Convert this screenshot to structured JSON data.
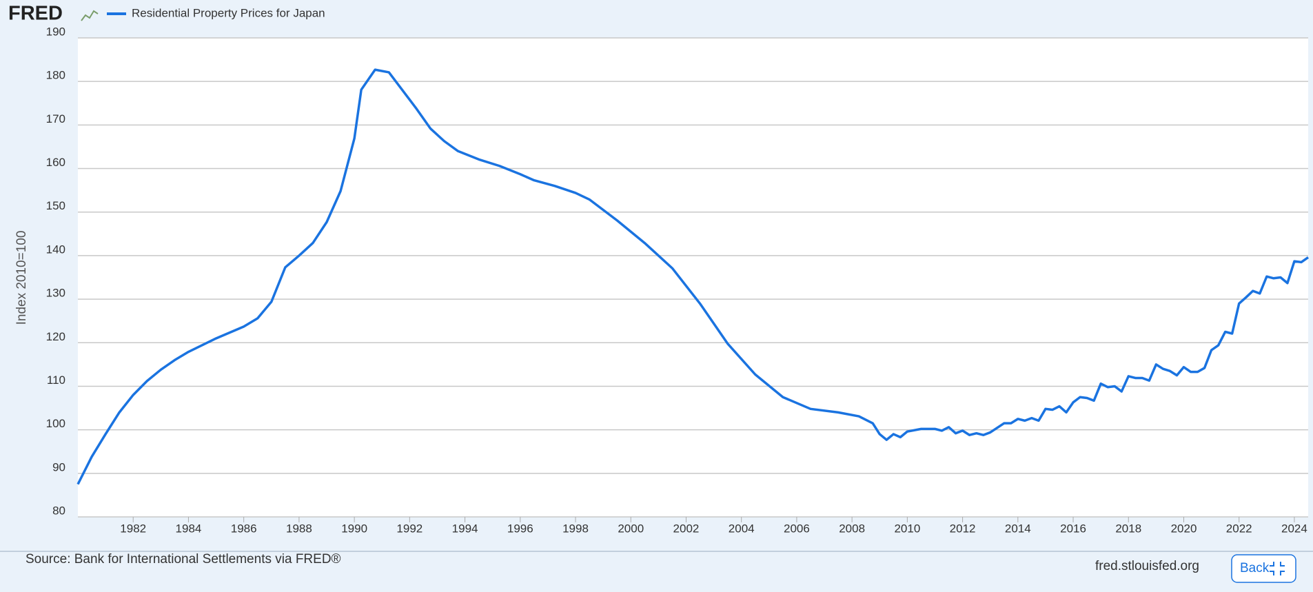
{
  "chart_data": {
    "type": "line",
    "logo": "FRED",
    "y_label": "Index 2010=100",
    "source": "Source: Bank for International Settlements via FRED®",
    "site": "fred.stlouisfed.org",
    "button": "Back",
    "x": [
      1980,
      1980.5,
      1981,
      1981.5,
      1982,
      1982.5,
      1983,
      1983.5,
      1984,
      1985,
      1986,
      1986.5,
      1987,
      1987.5,
      1988,
      1988.5,
      1989,
      1989.5,
      1990,
      1990.25,
      1990.75,
      1991.25,
      1991.75,
      1992.25,
      1992.75,
      1993.25,
      1993.75,
      1994.5,
      1995.25,
      1996,
      1996.5,
      1997.25,
      1998,
      1998.5,
      1999.5,
      2000.5,
      2001.5,
      2002.5,
      2003.5,
      2004.5,
      2005.5,
      2006.5,
      2007.5,
      2008.25,
      2008.75,
      2009,
      2009.25,
      2009.5,
      2009.75,
      2010,
      2010.5,
      2011,
      2011.25,
      2011.5,
      2011.75,
      2012,
      2012.25,
      2012.5,
      2012.75,
      2013,
      2013.5,
      2013.75,
      2014,
      2014.25,
      2014.5,
      2014.75,
      2015,
      2015.25,
      2015.5,
      2015.75,
      2016,
      2016.25,
      2016.5,
      2016.75,
      2017,
      2017.25,
      2017.5,
      2017.75,
      2018,
      2018.25,
      2018.5,
      2018.75,
      2019,
      2019.25,
      2019.5,
      2019.75,
      2020,
      2020.25,
      2020.5,
      2020.75,
      2021,
      2021.25,
      2021.5,
      2021.75,
      2022,
      2022.25,
      2022.5,
      2022.75,
      2023,
      2023.25,
      2023.5,
      2023.75,
      2024,
      2024.25,
      2024.5
    ],
    "series": [
      {
        "name": "Residential Property Prices for Japan",
        "color": "#1a73e0",
        "values": [
          87.5,
          93.8,
          99,
          104,
          108,
          111.2,
          113.8,
          116,
          117.9,
          121,
          123.7,
          125.6,
          129.4,
          137.3,
          140,
          142.9,
          147.7,
          154.8,
          166.9,
          178.1,
          182.7,
          182.1,
          177.9,
          173.7,
          169.2,
          166.3,
          164,
          162.1,
          160.6,
          158.7,
          157.3,
          156,
          154.4,
          152.9,
          148.1,
          142.9,
          137.1,
          129,
          119.8,
          112.7,
          107.5,
          104.8,
          104,
          103.1,
          101.5,
          99,
          97.7,
          99,
          98.3,
          99.6,
          100.2,
          100.2,
          99.8,
          100.6,
          99.2,
          99.8,
          98.8,
          99.2,
          98.8,
          99.4,
          101.5,
          101.5,
          102.5,
          102.1,
          102.7,
          102.1,
          104.8,
          104.6,
          105.4,
          104,
          106.3,
          107.5,
          107.3,
          106.7,
          110.6,
          109.8,
          110,
          108.8,
          112.3,
          111.9,
          111.9,
          111.3,
          115,
          114,
          113.5,
          112.5,
          114.4,
          113.3,
          113.3,
          114.2,
          118.3,
          119.4,
          122.5,
          122.1,
          129,
          130.4,
          131.9,
          131.3,
          135.2,
          134.8,
          135,
          133.7,
          138.7,
          138.5,
          139.6
        ]
      }
    ],
    "xlim": [
      1980,
      2024.5
    ],
    "xticks": [
      1982,
      1984,
      1986,
      1988,
      1990,
      1992,
      1994,
      1996,
      1998,
      2000,
      2002,
      2004,
      2006,
      2008,
      2010,
      2012,
      2014,
      2016,
      2018,
      2020,
      2022,
      2024
    ],
    "ylim": [
      80,
      190
    ],
    "yticks": [
      80,
      90,
      100,
      110,
      120,
      130,
      140,
      150,
      160,
      170,
      180,
      190
    ],
    "grid": true
  }
}
